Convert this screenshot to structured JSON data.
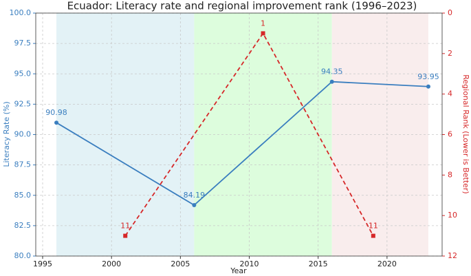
{
  "chart_data": {
    "type": "line",
    "title": "Ecuador: Literacy rate and regional improvement rank (1996–2023)",
    "x_label": "Year",
    "y_label": "Literacy Rate (%)",
    "y2_label": "Regional Rank (Lower is Better)",
    "xlim": [
      1994.5,
      2024
    ],
    "xticks": [
      1995,
      2000,
      2005,
      2010,
      2015,
      2020
    ],
    "ylim": [
      80,
      100
    ],
    "yticks": [
      {
        "value": 80,
        "label": "80.0"
      },
      82.5,
      {
        "value": 85,
        "label": "85.0"
      },
      87.5,
      {
        "value": 90,
        "label": "90.0"
      },
      92.5,
      {
        "value": 95,
        "label": "95.0"
      },
      97.5,
      {
        "value": 100,
        "label": "100.0"
      }
    ],
    "y2lim": [
      12,
      0
    ],
    "y2ticks": [
      0,
      2,
      4,
      6,
      8,
      10,
      12
    ],
    "grid": true,
    "y_color": "#3a7ebf",
    "y2_color": "#d62728",
    "shaded_spans": [
      {
        "start": 1996,
        "end": 2006,
        "color": "#e3f2f6"
      },
      {
        "start": 2006,
        "end": 2016,
        "color": "#ddfddd"
      },
      {
        "start": 2016,
        "end": 2023,
        "color": "#f9eded"
      }
    ],
    "series": [
      {
        "color": "#3a7ebf",
        "axis": "y",
        "marker": "circle",
        "dash": false,
        "x": [
          1996,
          2006,
          2016,
          2023
        ],
        "values": [
          90.98,
          84.19,
          94.35,
          93.95
        ]
      },
      {
        "color": "#d62728",
        "axis": "y2",
        "marker": "square",
        "dash": true,
        "x": [
          2001,
          2011,
          2019
        ],
        "values": [
          11,
          1,
          11
        ]
      }
    ]
  }
}
